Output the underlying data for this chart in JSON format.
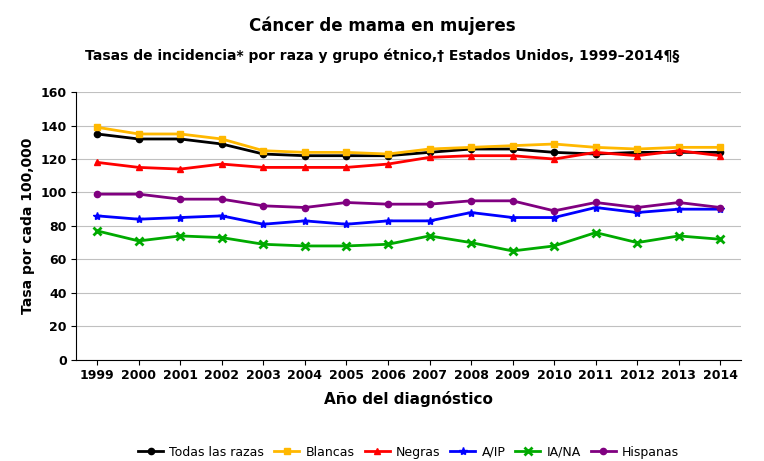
{
  "years": [
    1999,
    2000,
    2001,
    2002,
    2003,
    2004,
    2005,
    2006,
    2007,
    2008,
    2009,
    2010,
    2011,
    2012,
    2013,
    2014
  ],
  "todas_las_razas": [
    135,
    132,
    132,
    129,
    123,
    122,
    122,
    122,
    124,
    126,
    126,
    124,
    123,
    124,
    124,
    124
  ],
  "blancas": [
    139,
    135,
    135,
    132,
    125,
    124,
    124,
    123,
    126,
    127,
    128,
    129,
    127,
    126,
    127,
    127
  ],
  "negras": [
    118,
    115,
    114,
    117,
    115,
    115,
    115,
    117,
    121,
    122,
    122,
    120,
    124,
    122,
    125,
    122
  ],
  "aip": [
    86,
    84,
    85,
    86,
    81,
    83,
    81,
    83,
    83,
    88,
    85,
    85,
    91,
    88,
    90,
    90
  ],
  "iana": [
    77,
    71,
    74,
    73,
    69,
    68,
    68,
    69,
    74,
    70,
    65,
    68,
    76,
    70,
    74,
    72
  ],
  "hispanas": [
    99,
    99,
    96,
    96,
    92,
    91,
    94,
    93,
    93,
    95,
    95,
    89,
    94,
    91,
    94,
    91
  ],
  "title1": "Cáncer de mama en mujeres",
  "title2": "Tasas de incidencia* por raza y grupo étnico,† Estados Unidos, 1999–2014¶§",
  "xlabel": "Año del diagnóstico",
  "ylabel": "Tasa por cada 100,000",
  "ylim": [
    0,
    160
  ],
  "yticks": [
    0,
    20,
    40,
    60,
    80,
    100,
    120,
    140,
    160
  ],
  "colors": {
    "todas_las_razas": "#000000",
    "blancas": "#FFB800",
    "negras": "#FF0000",
    "aip": "#0000FF",
    "iana": "#00AA00",
    "hispanas": "#800080"
  },
  "legend_labels": [
    "Todas las razas",
    "Blancas",
    "Negras",
    "A/IP",
    "IA/NA",
    "Hispanas"
  ],
  "figsize": [
    7.64,
    4.61
  ],
  "dpi": 100
}
